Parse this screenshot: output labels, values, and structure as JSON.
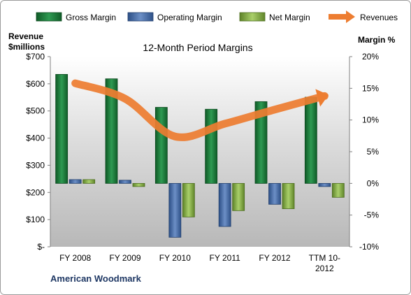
{
  "chart_data": {
    "type": "bar",
    "title": "12-Month Period Margins",
    "left_axis_label": [
      "Revenue",
      "$millions"
    ],
    "right_axis_label": "Margin %",
    "company": "American Woodmark",
    "categories": [
      "FY 2008",
      "FY 2009",
      "FY 2010",
      "FY 2011",
      "FY 2012",
      "TTM 10-2012"
    ],
    "category_labels": [
      [
        "FY 2008"
      ],
      [
        "FY 2009"
      ],
      [
        "FY 2010"
      ],
      [
        "FY 2011"
      ],
      [
        "FY 2012"
      ],
      [
        "TTM 10-",
        "2012"
      ]
    ],
    "left_axis": {
      "min": 0,
      "max": 700,
      "step": 100,
      "tick_labels": [
        "$-",
        "$100",
        "$200",
        "$300",
        "$400",
        "$500",
        "$600",
        "$700"
      ]
    },
    "right_axis": {
      "min": -10,
      "max": 20,
      "step": 5,
      "tick_labels": [
        "-10%",
        "-5%",
        "0%",
        "5%",
        "10%",
        "15%",
        "20%"
      ]
    },
    "series": [
      {
        "name": "Gross Margin",
        "axis": "right",
        "kind": "bar",
        "color": "#1e7a3c",
        "values": [
          17.2,
          16.5,
          12.0,
          11.7,
          12.9,
          13.6
        ]
      },
      {
        "name": "Operating Margin",
        "axis": "right",
        "kind": "bar",
        "color": "#4a6fa8",
        "values": [
          0.6,
          0.5,
          -8.5,
          -6.8,
          -3.3,
          -0.5
        ]
      },
      {
        "name": "Net Margin",
        "axis": "right",
        "kind": "bar",
        "color": "#8db24a",
        "values": [
          0.6,
          -0.5,
          -5.3,
          -4.3,
          -4.0,
          -2.2
        ]
      },
      {
        "name": "Revenues",
        "axis": "left",
        "kind": "line",
        "color": "#ed7d31",
        "values": [
          602,
          545,
          406,
          453,
          505,
          555
        ]
      }
    ],
    "legend": [
      "Gross Margin",
      "Operating Margin",
      "Net Margin",
      "Revenues"
    ],
    "legend_position": "top",
    "grid": false
  }
}
